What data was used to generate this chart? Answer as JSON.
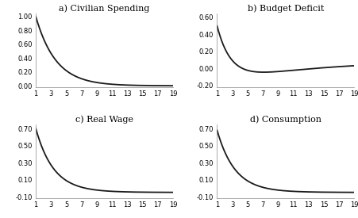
{
  "title_a": "a) Civilian Spending",
  "title_b": "b) Budget Deficit",
  "title_c": "c) Real Wage",
  "title_d": "d) Consumption",
  "x_ticks": [
    1,
    3,
    5,
    7,
    9,
    11,
    13,
    15,
    17,
    19
  ],
  "x_range": [
    1,
    19
  ],
  "panel_a": {
    "ylim": [
      -0.02,
      1.05
    ],
    "yticks": [
      0.0,
      0.2,
      0.4,
      0.6,
      0.8,
      1.0
    ],
    "decay": 0.38
  },
  "panel_b": {
    "ylim": [
      -0.22,
      0.65
    ],
    "yticks": [
      -0.2,
      0.0,
      0.2,
      0.4,
      0.6
    ]
  },
  "panel_c": {
    "ylim": [
      -0.12,
      0.75
    ],
    "yticks": [
      -0.1,
      0.1,
      0.3,
      0.5,
      0.7
    ]
  },
  "panel_d": {
    "ylim": [
      -0.12,
      0.75
    ],
    "yticks": [
      -0.1,
      0.1,
      0.3,
      0.5,
      0.7
    ]
  },
  "line_color": "#1a1a1a",
  "line_width": 1.3,
  "bg_color": "#ffffff",
  "title_fontsize": 8,
  "tick_fontsize": 6
}
